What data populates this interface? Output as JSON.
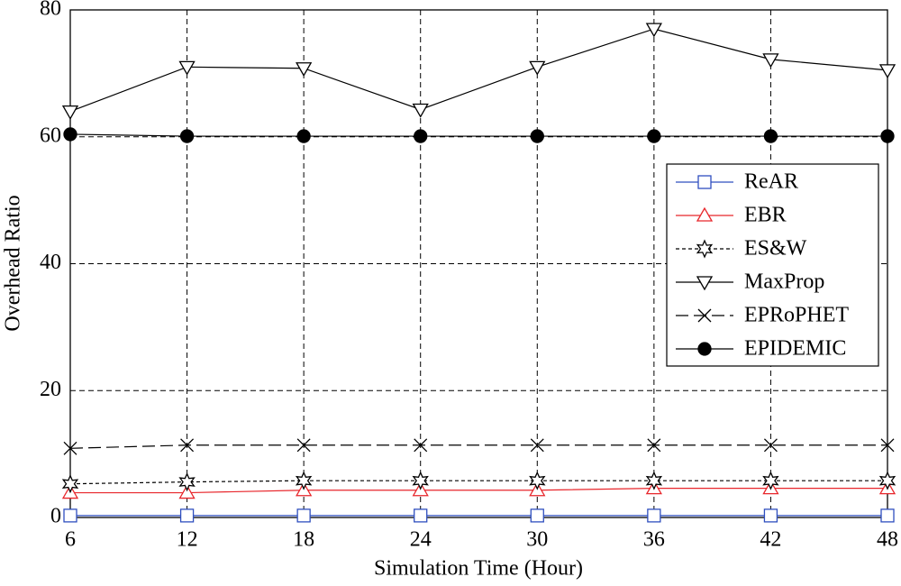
{
  "chart_data": {
    "type": "line",
    "xlabel": "Simulation Time (Hour)",
    "ylabel": "Overhead Ratio",
    "x": [
      6,
      12,
      18,
      24,
      30,
      36,
      42,
      48
    ],
    "xlim": [
      6,
      48
    ],
    "xticks": [
      6,
      12,
      18,
      24,
      30,
      36,
      42,
      48
    ],
    "ylim": [
      0,
      80
    ],
    "yticks": [
      0,
      20,
      40,
      60,
      80
    ],
    "grid": true,
    "legend": "center right",
    "series": [
      {
        "name": "ReAR",
        "color": "#2f4fbf",
        "marker": "square",
        "line_style": "solid",
        "values": [
          0.3,
          0.3,
          0.3,
          0.3,
          0.3,
          0.3,
          0.3,
          0.3
        ]
      },
      {
        "name": "EBR",
        "color": "#e8262b",
        "marker": "triangle-up",
        "line_style": "solid",
        "values": [
          3.9,
          3.9,
          4.3,
          4.3,
          4.3,
          4.6,
          4.6,
          4.6
        ]
      },
      {
        "name": "ES&W",
        "color": "#000000",
        "marker": "star",
        "line_style": "dashed",
        "values": [
          5.3,
          5.6,
          5.8,
          5.8,
          5.8,
          5.8,
          5.8,
          5.8
        ]
      },
      {
        "name": "MaxProp",
        "color": "#000000",
        "marker": "triangle-down",
        "line_style": "solid",
        "values": [
          64,
          71,
          70.8,
          64.3,
          71,
          77,
          72.2,
          70.5
        ]
      },
      {
        "name": "EPRoPHET",
        "color": "#000000",
        "marker": "x",
        "line_style": "long-dash",
        "values": [
          10.9,
          11.4,
          11.4,
          11.4,
          11.4,
          11.4,
          11.4,
          11.4
        ]
      },
      {
        "name": "EPIDEMIC",
        "color": "#000000",
        "marker": "filled-circle",
        "line_style": "solid",
        "values": [
          60.4,
          60.1,
          60.1,
          60.1,
          60.1,
          60.1,
          60.1,
          60.1
        ]
      }
    ]
  }
}
